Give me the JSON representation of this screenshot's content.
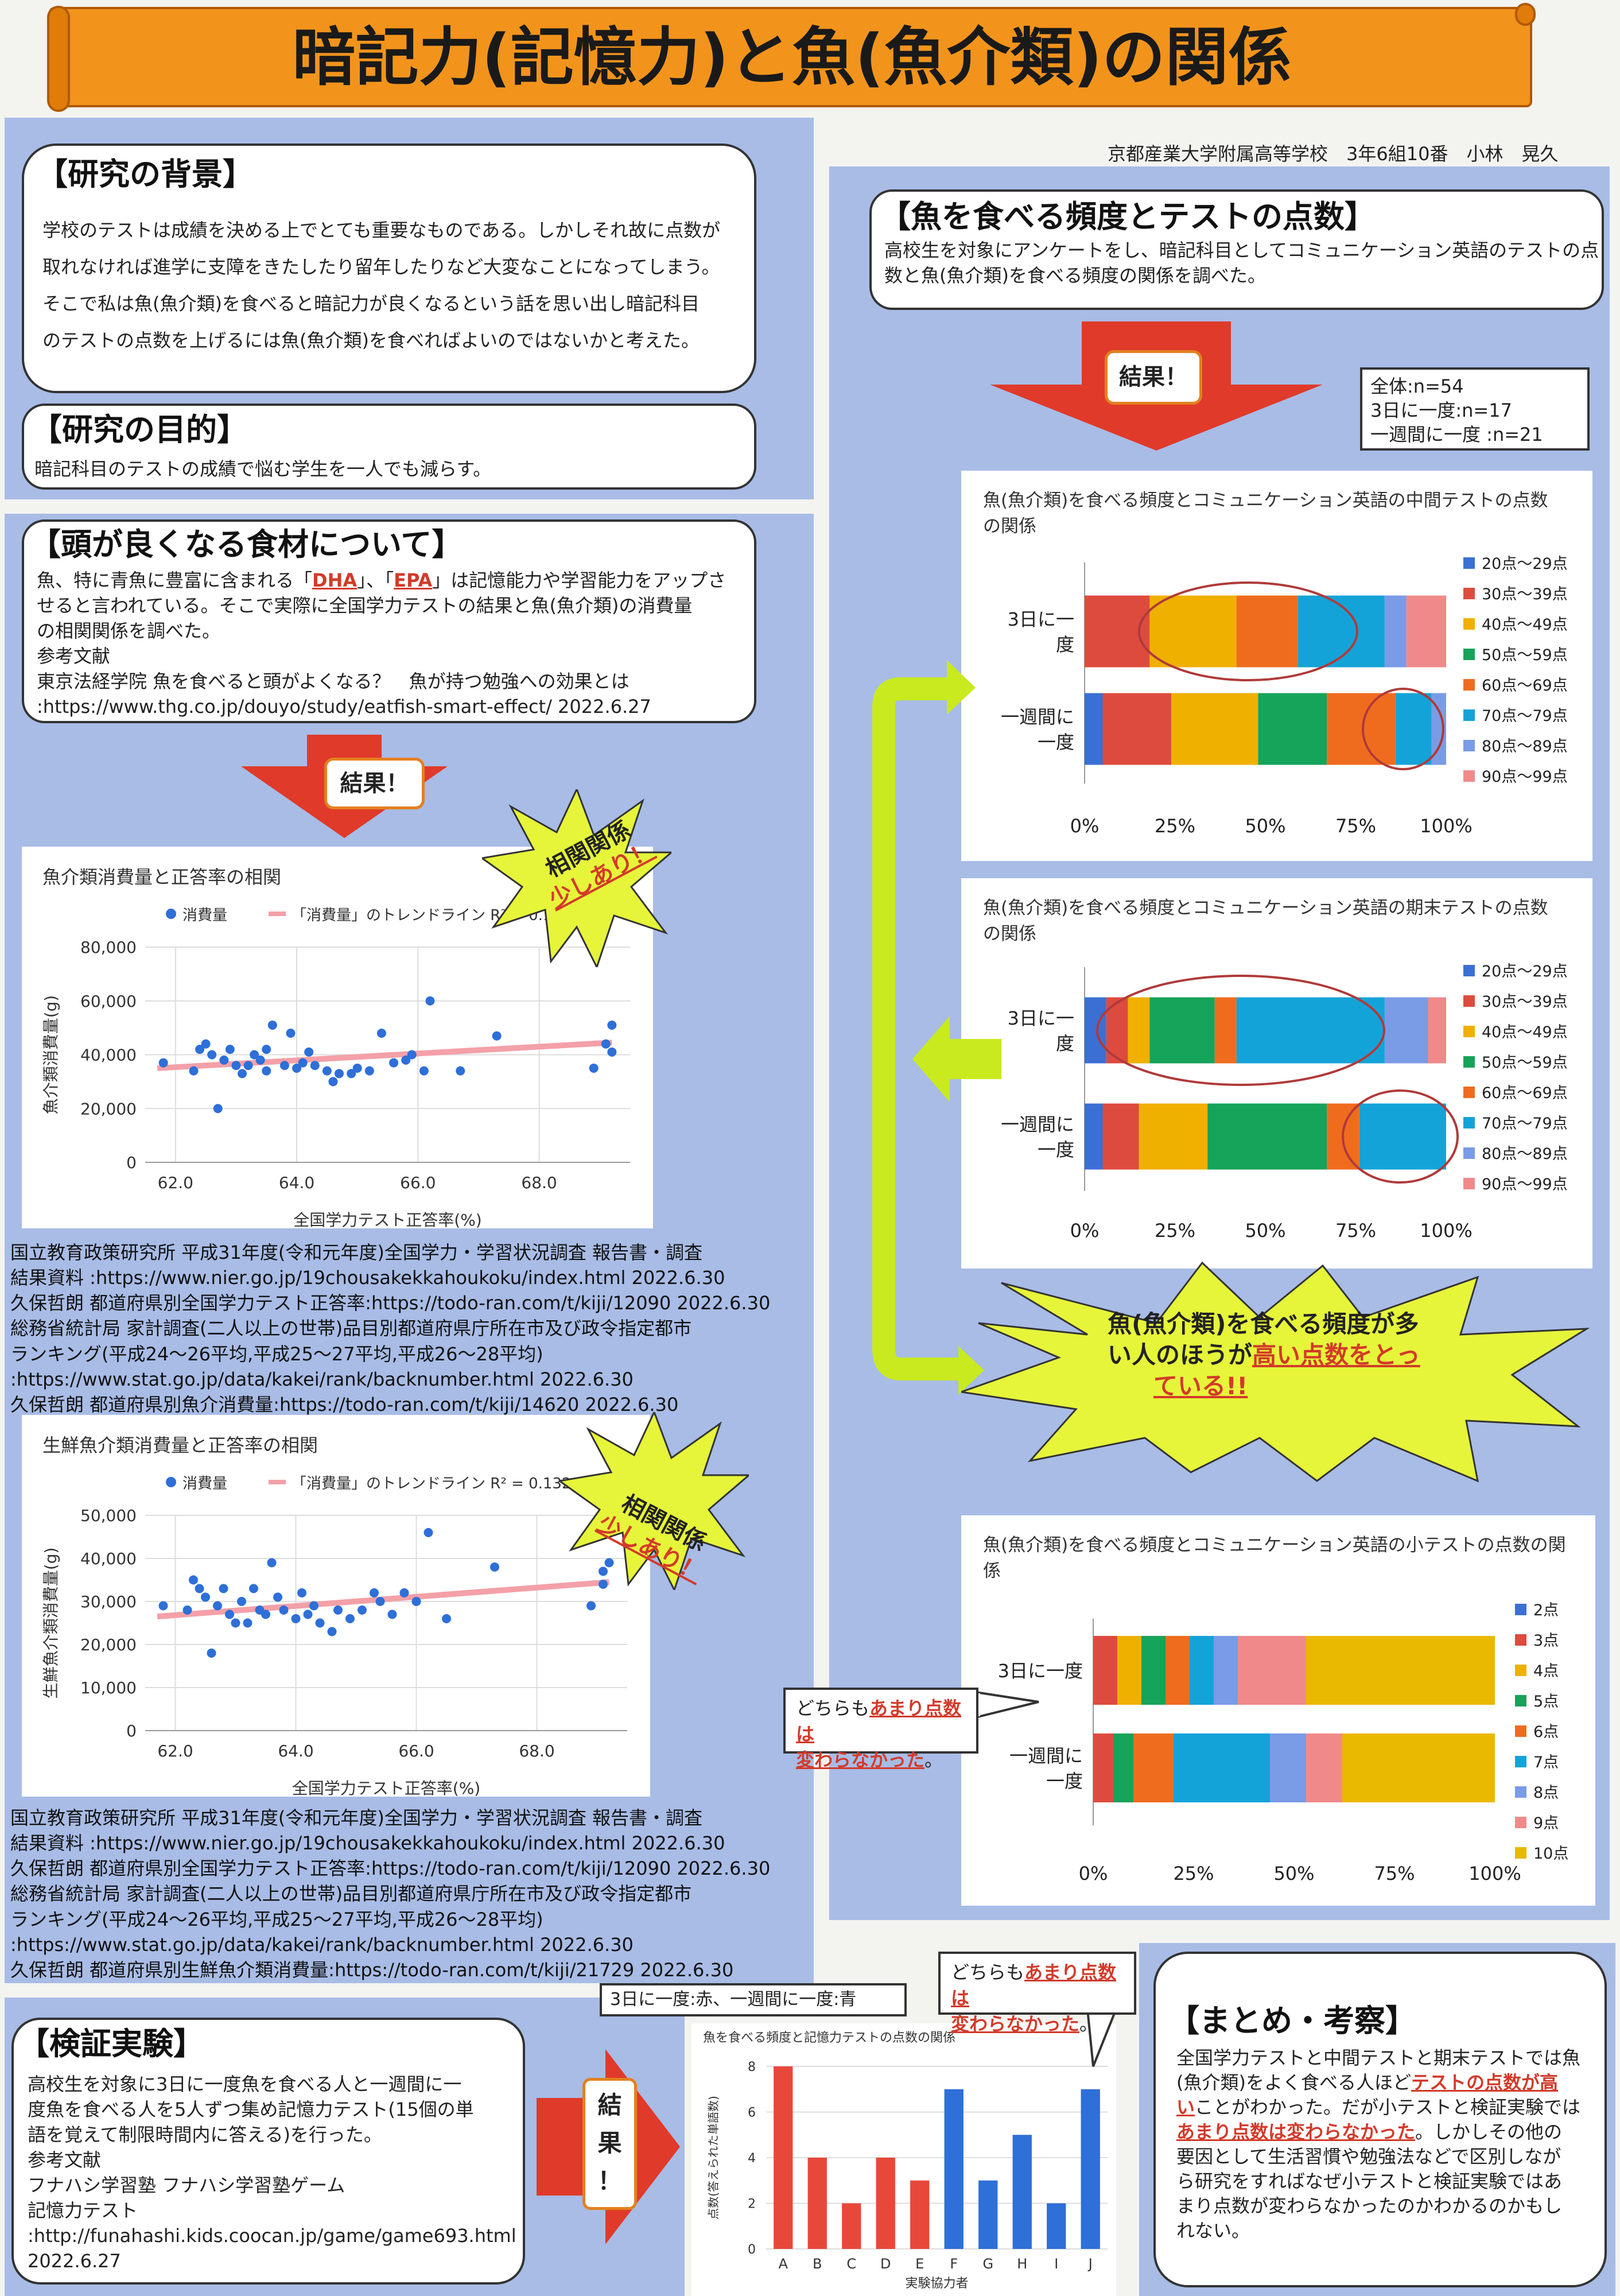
{
  "title": "暗記力(記憶力)と魚(魚介類)の関係",
  "author": "京都産業大学附属高等学校　3年6組10番　小林　晃久",
  "colors": {
    "banner": "#f2941c",
    "panel": "#a8bce6",
    "star": "#e6f53a",
    "arrow_red": "#e03a2a",
    "arrow_green": "#c8ea1e",
    "underline_red": "#d23a2a"
  },
  "background": {
    "heading": "【研究の背景】",
    "lines": [
      "学校のテストは成績を決める上でとても重要なものである。しかしそれ故に点数が",
      "取れなければ進学に支障をきたしたり留年したりなど大変なことになってしまう。",
      "そこで私は魚(魚介類)を食べると暗記力が良くなるという話を思い出し暗記科目",
      "のテストの点数を上げるには魚(魚介類)を食べればよいのではないかと考えた。"
    ]
  },
  "purpose": {
    "heading": "【研究の目的】",
    "text": "暗記科目のテストの成績で悩む学生を一人でも減らす。"
  },
  "foods": {
    "heading": "【頭が良くなる食材について】",
    "line1_a": "魚、特に青魚に豊富に含まれる「",
    "dha": "DHA",
    "line1_b": "」、「",
    "epa": "EPA",
    "line1_c": "」は記憶能力や学習能力をアップさ",
    "line2": "せると言われている。そこで実際に全国学力テストの結果と魚(魚介類)の消費量",
    "line3": "の相関関係を調べた。",
    "ref_label": "参考文献",
    "ref1": "東京法経学院 魚を食べると頭がよくなる？　魚が持つ勉強への効果とは",
    "ref2": ":https://www.thg.co.jp/douyo/study/eatfish-smart-effect/ 2022.6.27"
  },
  "result_label": "結果！",
  "star_corr": {
    "line1": "相関関係",
    "line2": "少しあり！"
  },
  "star_main": {
    "line1": "魚(魚介類)を食べる頻度が多",
    "line2a": "い人のほうが",
    "line2b": "高い点数をとっ",
    "line3": "ている!!"
  },
  "sources1": [
    "国立教育政策研究所 平成31年度(令和元年度)全国学力・学習状況調査 報告書・調査",
    "結果資料 :https://www.nier.go.jp/19chousakekkahoukoku/index.html 2022.6.30",
    "久保哲朗 都道府県別全国学力テスト正答率:https://todo-ran.com/t/kiji/12090 2022.6.30",
    "総務省統計局 家計調査(二人以上の世帯)品目別都道府県庁所在市及び政令指定都市",
    "ランキング(平成24〜26平均,平成25〜27平均,平成26〜28平均)",
    ":https://www.stat.go.jp/data/kakei/rank/backnumber.html 2022.6.30",
    "久保哲朗 都道府県別魚介消費量:https://todo-ran.com/t/kiji/14620 2022.6.30"
  ],
  "sources2": [
    "国立教育政策研究所 平成31年度(令和元年度)全国学力・学習状況調査 報告書・調査",
    "結果資料 :https://www.nier.go.jp/19chousakekkahoukoku/index.html 2022.6.30",
    "久保哲朗 都道府県別全国学力テスト正答率:https://todo-ran.com/t/kiji/12090 2022.6.30",
    "総務省統計局 家計調査(二人以上の世帯)品目別都道府県庁所在市及び政令指定都市",
    "ランキング(平成24〜26平均,平成25〜27平均,平成26〜28平均)",
    ":https://www.stat.go.jp/data/kakei/rank/backnumber.html 2022.6.30",
    "久保哲朗 都道府県別生鮮魚介類消費量:https://todo-ran.com/t/kiji/21729 2022.6.30"
  ],
  "fish_freq": {
    "heading": "【魚を食べる頻度とテストの点数】",
    "lines": [
      "高校生を対象にアンケートをし、暗記科目としてコミュニケーション英語のテストの点",
      "数と魚(魚介類)を食べる頻度の関係を調べた。"
    ]
  },
  "sample_box": [
    "全体:n=54",
    "3日に一度:n=17",
    "一週間に一度 :n=21"
  ],
  "callout_small": {
    "pre": "どちらも",
    "red1": "あまり点数は",
    "red2": "変わらなかった",
    "post": "。"
  },
  "callout_exp": {
    "pre": "どちらも",
    "red1": "あまり点数は",
    "red2": "変わらなかった",
    "post": "。"
  },
  "legend_note": "3日に一度:赤、一週間に一度:青",
  "experiment": {
    "heading": "【検証実験】",
    "lines": [
      "高校生を対象に3日に一度魚を食べる人と一週間に一",
      "度魚を食べる人を5人ずつ集め記憶力テスト(15個の単",
      "語を覚えて制限時間内に答える)を行った。",
      "参考文献",
      "フナハシ学習塾 フナハシ学習塾ゲーム",
      "記憶力テスト",
      ":http://funahashi.kids.coocan.jp/game/game693.html",
      "2022.6.27"
    ],
    "arrow_chars": [
      "結",
      "果",
      "！"
    ]
  },
  "summary": {
    "heading": "【まとめ・考察】",
    "l1": "全国学力テストと中間テストと期末テストでは魚",
    "l2a": "(魚介類)をよく食べる人ほど",
    "l2b": "テストの点数が高",
    "l3a": "い",
    "l3b": "ことがわかった。だが小テストと検証実験では",
    "l4a": "あまり点数は変わらなかった",
    "l4b": "。しかしその他の",
    "l5": "要因として生活習慣や勉強法などで区別しなが",
    "l6": "ら研究をすればなぜ小テストと検証実験ではあ",
    "l7": "まり点数が変わらなかったのかわかるのかもし",
    "l8": "れない。"
  },
  "chart_data": [
    {
      "type": "scatter",
      "title": "魚介類消費量と正答率の相関",
      "xlabel": "全国学力テスト正答率(%)",
      "ylabel": "魚介類消費量(g)",
      "xlim": [
        61.5,
        69.5
      ],
      "ylim": [
        0,
        80000
      ],
      "xticks": [
        "62.0",
        "64.0",
        "66.0",
        "68.0"
      ],
      "yticks": [
        "0",
        "20,000",
        "40,000",
        "60,000",
        "80,000"
      ],
      "legend": [
        "消費量",
        "「消費量」のトレンドライン R² = 0.1"
      ],
      "trend": {
        "x": [
          61.7,
          69.2
        ],
        "y": [
          35000,
          44500
        ]
      },
      "points": [
        [
          61.8,
          37000
        ],
        [
          62.3,
          34000
        ],
        [
          62.4,
          42000
        ],
        [
          62.5,
          44000
        ],
        [
          62.6,
          40000
        ],
        [
          62.7,
          20000
        ],
        [
          62.8,
          38000
        ],
        [
          62.9,
          42000
        ],
        [
          63.0,
          36000
        ],
        [
          63.1,
          33000
        ],
        [
          63.2,
          36000
        ],
        [
          63.3,
          40000
        ],
        [
          63.4,
          38000
        ],
        [
          63.5,
          34000
        ],
        [
          63.5,
          42000
        ],
        [
          63.6,
          51000
        ],
        [
          63.8,
          36000
        ],
        [
          63.9,
          48000
        ],
        [
          64.0,
          35000
        ],
        [
          64.1,
          37000
        ],
        [
          64.2,
          41000
        ],
        [
          64.3,
          36000
        ],
        [
          64.5,
          34000
        ],
        [
          64.6,
          30000
        ],
        [
          64.7,
          33000
        ],
        [
          64.9,
          33000
        ],
        [
          65.0,
          35000
        ],
        [
          65.2,
          34000
        ],
        [
          65.4,
          48000
        ],
        [
          65.6,
          37000
        ],
        [
          65.8,
          38000
        ],
        [
          65.9,
          40000
        ],
        [
          66.1,
          34000
        ],
        [
          66.2,
          60000
        ],
        [
          66.7,
          34000
        ],
        [
          67.3,
          47000
        ],
        [
          68.9,
          35000
        ],
        [
          69.1,
          44000
        ],
        [
          69.2,
          51000
        ],
        [
          69.2,
          41000
        ]
      ]
    },
    {
      "type": "scatter",
      "title": "生鮮魚介類消費量と正答率の相関",
      "xlabel": "全国学力テスト正答率(%)",
      "ylabel": "生鮮魚介類消費量(g)",
      "xlim": [
        61.5,
        69.5
      ],
      "ylim": [
        0,
        50000
      ],
      "xticks": [
        "62.0",
        "64.0",
        "66.0",
        "68.0"
      ],
      "yticks": [
        "0",
        "10,000",
        "20,000",
        "30,000",
        "40,000",
        "50,000"
      ],
      "legend": [
        "消費量",
        "「消費量」のトレンドライン R² = 0.132"
      ],
      "trend": {
        "x": [
          61.7,
          69.2
        ],
        "y": [
          26500,
          34500
        ]
      },
      "points": [
        [
          61.8,
          29000
        ],
        [
          62.2,
          28000
        ],
        [
          62.3,
          35000
        ],
        [
          62.4,
          33000
        ],
        [
          62.5,
          31000
        ],
        [
          62.6,
          18000
        ],
        [
          62.7,
          29000
        ],
        [
          62.8,
          33000
        ],
        [
          62.9,
          27000
        ],
        [
          63.0,
          25000
        ],
        [
          63.1,
          30000
        ],
        [
          63.2,
          25000
        ],
        [
          63.3,
          33000
        ],
        [
          63.4,
          28000
        ],
        [
          63.5,
          27000
        ],
        [
          63.6,
          39000
        ],
        [
          63.7,
          31000
        ],
        [
          63.8,
          28000
        ],
        [
          64.0,
          26000
        ],
        [
          64.1,
          32000
        ],
        [
          64.2,
          27000
        ],
        [
          64.3,
          29000
        ],
        [
          64.4,
          25000
        ],
        [
          64.6,
          23000
        ],
        [
          64.7,
          28000
        ],
        [
          64.9,
          26000
        ],
        [
          65.1,
          28000
        ],
        [
          65.3,
          32000
        ],
        [
          65.4,
          30000
        ],
        [
          65.6,
          27000
        ],
        [
          65.8,
          32000
        ],
        [
          66.0,
          30000
        ],
        [
          66.2,
          46000
        ],
        [
          66.5,
          26000
        ],
        [
          67.3,
          38000
        ],
        [
          68.9,
          29000
        ],
        [
          69.1,
          37000
        ],
        [
          69.2,
          39000
        ],
        [
          69.1,
          34000
        ]
      ]
    },
    {
      "type": "bar",
      "stacked": true,
      "orientation": "horizontal",
      "title": "魚(魚介類)を食べる頻度とコミュニケーション英語の中間テストの点数の関係",
      "categories": [
        "3日に一度",
        "一週間に一度"
      ],
      "xticks": [
        "0%",
        "25%",
        "50%",
        "75%",
        "100%"
      ],
      "series": [
        {
          "name": "20点〜29点",
          "color": "#3b6fd4",
          "values": [
            0,
            5
          ]
        },
        {
          "name": "30点〜39点",
          "color": "#dd4b3e",
          "values": [
            18,
            19
          ]
        },
        {
          "name": "40点〜49点",
          "color": "#f0b000",
          "values": [
            24,
            24
          ]
        },
        {
          "name": "50点〜59点",
          "color": "#16a35a",
          "values": [
            0,
            19
          ]
        },
        {
          "name": "60点〜69点",
          "color": "#ef6c1f",
          "values": [
            17,
            19
          ]
        },
        {
          "name": "70点〜79点",
          "color": "#14a3d8",
          "values": [
            24,
            10
          ]
        },
        {
          "name": "80点〜89点",
          "color": "#7a9be6",
          "values": [
            6,
            4
          ]
        },
        {
          "name": "90点〜99点",
          "color": "#f08a8a",
          "values": [
            11,
            0
          ]
        }
      ]
    },
    {
      "type": "bar",
      "stacked": true,
      "orientation": "horizontal",
      "title": "魚(魚介類)を食べる頻度とコミュニケーション英語の期末テストの点数の関係",
      "categories": [
        "3日に一度",
        "一週間に一度"
      ],
      "xticks": [
        "0%",
        "25%",
        "50%",
        "75%",
        "100%"
      ],
      "series": [
        {
          "name": "20点〜29点",
          "color": "#3b6fd4",
          "values": [
            6,
            5
          ]
        },
        {
          "name": "30点〜39点",
          "color": "#dd4b3e",
          "values": [
            6,
            10
          ]
        },
        {
          "name": "40点〜49点",
          "color": "#f0b000",
          "values": [
            6,
            19
          ]
        },
        {
          "name": "50点〜59点",
          "color": "#16a35a",
          "values": [
            18,
            33
          ]
        },
        {
          "name": "60点〜69点",
          "color": "#ef6c1f",
          "values": [
            6,
            9
          ]
        },
        {
          "name": "70点〜79点",
          "color": "#14a3d8",
          "values": [
            41,
            24
          ]
        },
        {
          "name": "80点〜89点",
          "color": "#7a9be6",
          "values": [
            12,
            0
          ]
        },
        {
          "name": "90点〜99点",
          "color": "#f08a8a",
          "values": [
            5,
            0
          ]
        }
      ]
    },
    {
      "type": "bar",
      "stacked": true,
      "orientation": "horizontal",
      "title": "魚(魚介類)を食べる頻度とコミュニケーション英語の小テストの点数の関係",
      "categories": [
        "3日に一度",
        "一週間に一度"
      ],
      "xticks": [
        "0%",
        "25%",
        "50%",
        "75%",
        "100%"
      ],
      "series": [
        {
          "name": "2点",
          "color": "#3b6fd4",
          "values": [
            0,
            0
          ]
        },
        {
          "name": "3点",
          "color": "#dd4b3e",
          "values": [
            6,
            5
          ]
        },
        {
          "name": "4点",
          "color": "#f0b000",
          "values": [
            6,
            0
          ]
        },
        {
          "name": "5点",
          "color": "#16a35a",
          "values": [
            6,
            5
          ]
        },
        {
          "name": "6点",
          "color": "#ef6c1f",
          "values": [
            6,
            10
          ]
        },
        {
          "name": "7点",
          "color": "#14a3d8",
          "values": [
            6,
            24
          ]
        },
        {
          "name": "8点",
          "color": "#7a9be6",
          "values": [
            6,
            9
          ]
        },
        {
          "name": "9点",
          "color": "#f08a8a",
          "values": [
            17,
            9
          ]
        },
        {
          "name": "10点",
          "color": "#e9b800",
          "values": [
            47,
            38
          ]
        }
      ]
    },
    {
      "type": "bar",
      "title": "魚を食べる頻度と記憶力テストの点数の関係",
      "xlabel": "実験協力者",
      "ylabel": "点数(答えられた単語数)",
      "ylim": [
        0,
        8
      ],
      "yticks": [
        "0",
        "2",
        "4",
        "6",
        "8"
      ],
      "categories": [
        "A",
        "B",
        "C",
        "D",
        "E",
        "F",
        "G",
        "H",
        "I",
        "J"
      ],
      "values": [
        8,
        4,
        2,
        4,
        3,
        7,
        3,
        5,
        2,
        7
      ],
      "bar_colors": [
        "#e8483a",
        "#e8483a",
        "#e8483a",
        "#e8483a",
        "#e8483a",
        "#2e6fd8",
        "#2e6fd8",
        "#2e6fd8",
        "#2e6fd8",
        "#2e6fd8"
      ]
    }
  ]
}
